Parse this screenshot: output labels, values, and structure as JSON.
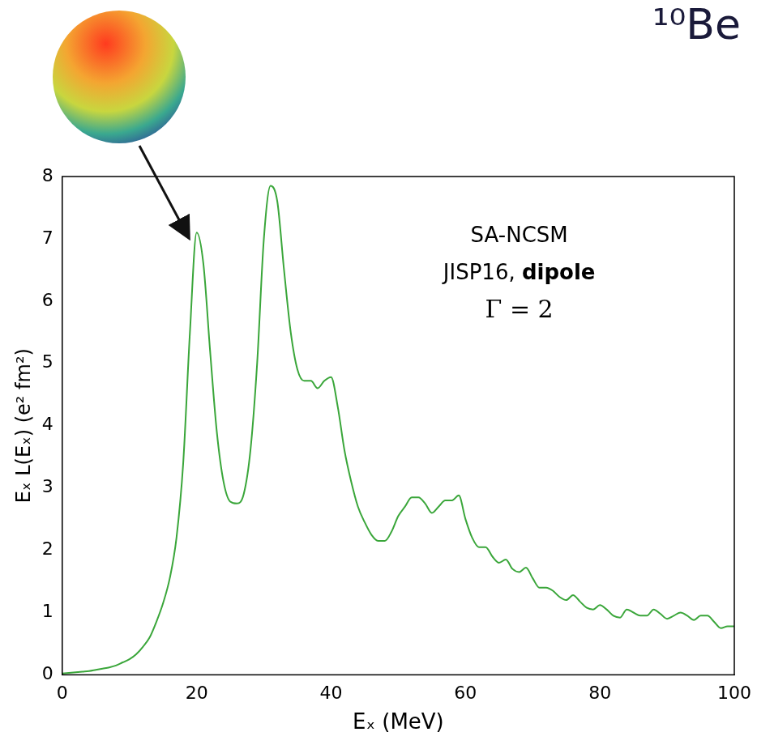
{
  "chart_data": {
    "type": "line",
    "title": "¹⁰Be",
    "x_label": "Eₓ (MeV)",
    "y_label": "Eₓ L(Eₓ) (e² fm²)",
    "annotations": [
      "SA-NCSM",
      "JISP16, dipole",
      "Γ = 2"
    ],
    "color": "#3aa63a",
    "grid": false,
    "xlim": [
      0,
      100
    ],
    "xticks": [
      0,
      20,
      40,
      60,
      80,
      100
    ],
    "ylim": [
      0,
      8
    ],
    "yticks": [
      0,
      1,
      2,
      3,
      4,
      5,
      6,
      7,
      8
    ],
    "x": [
      0,
      1,
      2,
      3,
      4,
      5,
      6,
      7,
      8,
      9,
      10,
      11,
      12,
      13,
      14,
      15,
      16,
      17,
      18,
      19,
      20,
      21,
      22,
      23,
      24,
      25,
      26,
      27,
      28,
      29,
      30,
      31,
      32,
      33,
      34,
      35,
      36,
      37,
      38,
      39,
      40,
      41,
      42,
      43,
      44,
      45,
      46,
      47,
      48,
      49,
      50,
      51,
      52,
      53,
      54,
      55,
      56,
      57,
      58,
      59,
      60,
      61,
      62,
      63,
      64,
      65,
      66,
      67,
      68,
      69,
      70,
      71,
      72,
      73,
      74,
      75,
      76,
      77,
      78,
      79,
      80,
      81,
      82,
      83,
      84,
      85,
      86,
      87,
      88,
      89,
      90,
      91,
      92,
      93,
      94,
      95,
      96,
      97,
      98,
      99,
      100
    ],
    "values": [
      0.02,
      0.03,
      0.04,
      0.05,
      0.06,
      0.08,
      0.1,
      0.12,
      0.15,
      0.2,
      0.25,
      0.33,
      0.45,
      0.6,
      0.85,
      1.15,
      1.55,
      2.2,
      3.4,
      5.5,
      7.1,
      6.6,
      5.2,
      3.9,
      3.1,
      2.78,
      2.75,
      2.9,
      3.6,
      5.0,
      7.0,
      7.85,
      7.6,
      6.5,
      5.5,
      4.9,
      4.72,
      4.72,
      4.6,
      4.72,
      4.78,
      4.3,
      3.6,
      3.1,
      2.7,
      2.45,
      2.25,
      2.15,
      2.15,
      2.3,
      2.55,
      2.7,
      2.85,
      2.85,
      2.75,
      2.6,
      2.7,
      2.8,
      2.8,
      2.88,
      2.5,
      2.2,
      2.05,
      2.05,
      1.9,
      1.8,
      1.85,
      1.7,
      1.65,
      1.72,
      1.55,
      1.4,
      1.4,
      1.35,
      1.25,
      1.2,
      1.28,
      1.18,
      1.08,
      1.05,
      1.12,
      1.05,
      0.95,
      0.92,
      1.05,
      1.0,
      0.95,
      0.95,
      1.05,
      0.98,
      0.9,
      0.95,
      1.0,
      0.95,
      0.88,
      0.95,
      0.95,
      0.85,
      0.75,
      0.78,
      0.78
    ]
  }
}
